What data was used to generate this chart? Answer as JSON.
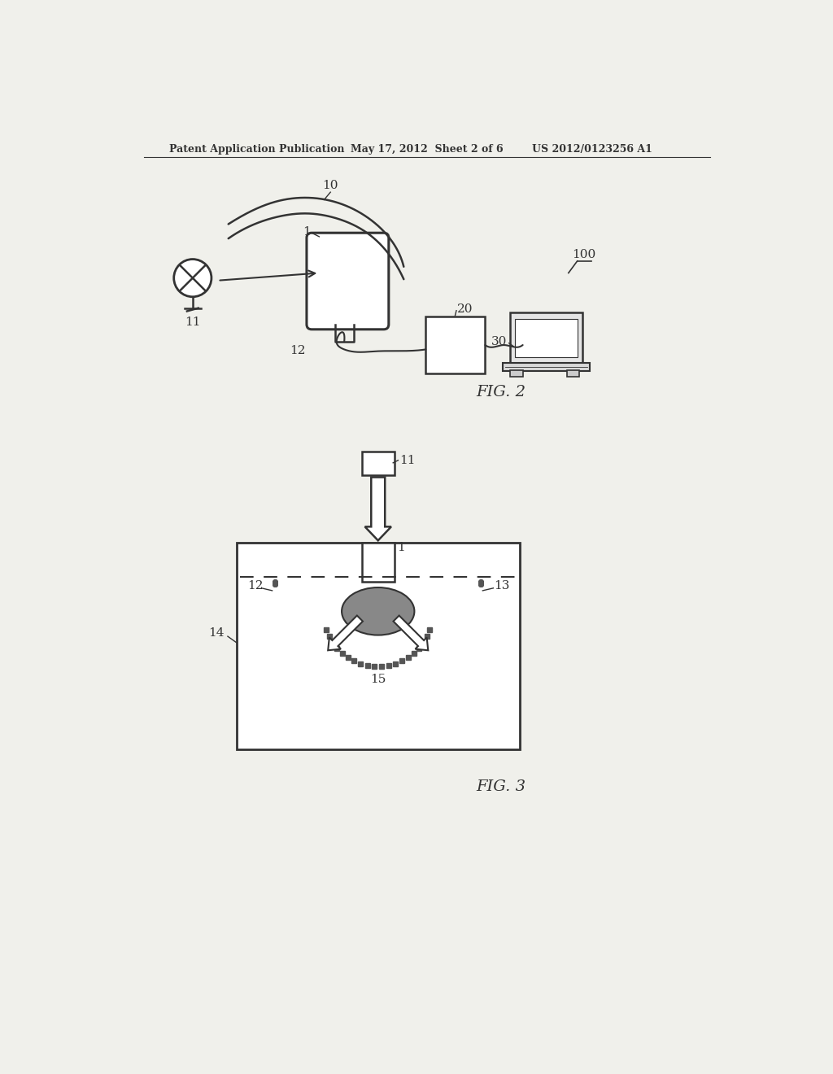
{
  "bg_color": "#f0f0eb",
  "line_color": "#333333",
  "header_text1": "Patent Application Publication",
  "header_text2": "May 17, 2012  Sheet 2 of 6",
  "header_text3": "US 2012/0123256 A1",
  "fig2_label": "FIG. 2",
  "fig3_label": "FIG. 3"
}
